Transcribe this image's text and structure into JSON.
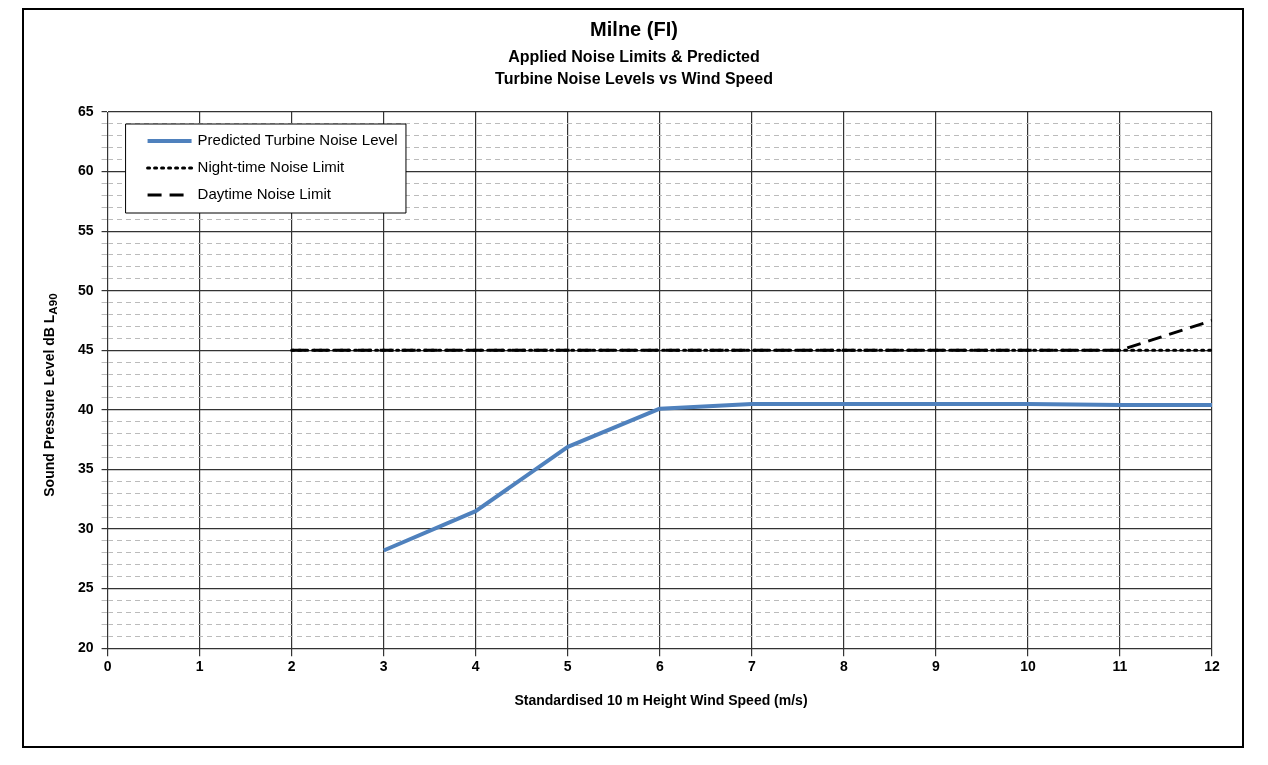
{
  "chart_data": {
    "type": "line",
    "title": "Milne (FI)",
    "subtitle": "Applied Noise Limits & Predicted Turbine Noise Levels vs Wind Speed",
    "xlabel": "Standardised 10 m Height Wind Speed (m/s)",
    "ylabel": "Sound Pressure Level dB L$_{A90}$",
    "x": [
      3,
      4,
      5,
      6,
      7,
      8,
      9,
      10,
      11,
      12
    ],
    "series": [
      {
        "name": "Predicted Turbine Noise Level",
        "color": "#4f81bd",
        "line_style": "solid",
        "values": [
          28.2,
          31.5,
          36.9,
          40.1,
          40.5,
          40.5,
          40.5,
          40.5,
          40.4,
          40.4
        ]
      },
      {
        "name": "Night-time Noise Limit",
        "color": "#000000",
        "line_style": "dotted",
        "x": [
          2,
          3,
          4,
          5,
          6,
          7,
          8,
          9,
          10,
          11,
          12
        ],
        "values": [
          45,
          45,
          45,
          45,
          45,
          45,
          45,
          45,
          45,
          45,
          45
        ]
      },
      {
        "name": "Daytime Noise Limit",
        "color": "#000000",
        "line_style": "dashed",
        "x": [
          2,
          3,
          4,
          5,
          6,
          7,
          8,
          9,
          10,
          11,
          12
        ],
        "values": [
          45,
          45,
          45,
          45,
          45,
          45,
          45,
          45,
          45,
          45,
          47.5
        ]
      }
    ],
    "xlim": [
      0,
      12
    ],
    "xticks": [
      0,
      1,
      2,
      3,
      4,
      5,
      6,
      7,
      8,
      9,
      10,
      11,
      12
    ],
    "ylim": [
      20,
      65
    ],
    "yticks": [
      20,
      {
        "value": 21,
        "label": null
      },
      {
        "value": 22,
        "label": null
      },
      {
        "value": 23,
        "label": null
      },
      {
        "value": 24,
        "label": null
      },
      25,
      {
        "value": 26,
        "label": null
      },
      {
        "value": 27,
        "label": null
      },
      {
        "value": 28,
        "label": null
      },
      {
        "value": 29,
        "label": null
      },
      30,
      {
        "value": 31,
        "label": null
      },
      {
        "value": 32,
        "label": null
      },
      {
        "value": 33,
        "label": null
      },
      {
        "value": 34,
        "label": null
      },
      35,
      {
        "value": 36,
        "label": null
      },
      {
        "value": 37,
        "label": null
      },
      {
        "value": 38,
        "label": null
      },
      {
        "value": 39,
        "label": null
      },
      40,
      {
        "value": 41,
        "label": null
      },
      {
        "value": 42,
        "label": null
      },
      {
        "value": 43,
        "label": null
      },
      {
        "value": 44,
        "label": null
      },
      45,
      {
        "value": 46,
        "label": null
      },
      {
        "value": 47,
        "label": null
      },
      {
        "value": 48,
        "label": null
      },
      {
        "value": 49,
        "label": null
      },
      50,
      {
        "value": 51,
        "label": null
      },
      {
        "value": 52,
        "label": null
      },
      {
        "value": 53,
        "label": null
      },
      {
        "value": 54,
        "label": null
      },
      55,
      {
        "value": 56,
        "label": null
      },
      {
        "value": 57,
        "label": null
      },
      {
        "value": 58,
        "label": null
      },
      {
        "value": 59,
        "label": null
      },
      60,
      {
        "value": 61,
        "label": null
      },
      {
        "value": 62,
        "label": null
      },
      {
        "value": 63,
        "label": null
      },
      {
        "value": 64,
        "label": null
      },
      65
    ],
    "grid": true,
    "legend": "top left",
    "marker": "none"
  }
}
